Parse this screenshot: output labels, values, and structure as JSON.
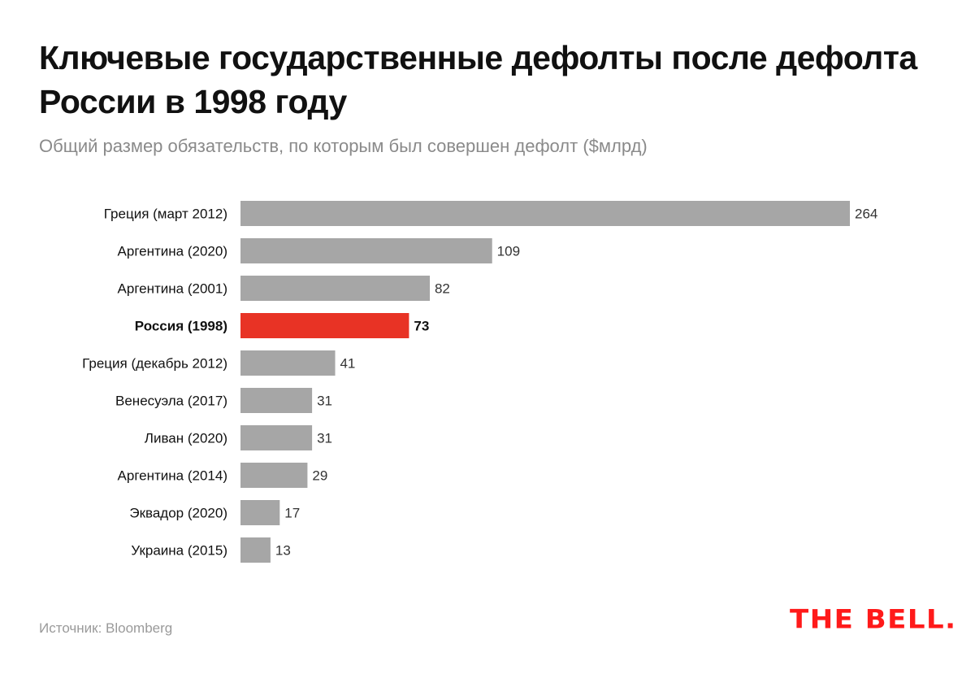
{
  "header": {
    "title": "Ключевые государственные дефолты после дефолта России в 1998 году",
    "subtitle": "Общий размер обязательств, по которым был совершен дефолт ($млрд)"
  },
  "footer": {
    "source": "Источник: Bloomberg",
    "logo": "THE BELL."
  },
  "colors": {
    "bar_default": "#a6a6a6",
    "bar_highlight": "#e83325",
    "label": "#111111",
    "value": "#333333",
    "logo": "#ff1a1a"
  },
  "chart_data": {
    "type": "bar",
    "orientation": "horizontal",
    "title": "Ключевые государственные дефолты после дефолта России в 1998 году",
    "subtitle": "Общий размер обязательств, по которым был совершен дефолт ($млрд)",
    "xlabel": "",
    "ylabel": "",
    "unit": "$млрд",
    "xlim": [
      0,
      264
    ],
    "grid": false,
    "legend": "none",
    "categories": [
      "Греция (март 2012)",
      "Аргентина (2020)",
      "Аргентина (2001)",
      "Россия (1998)",
      "Греция (декабрь 2012)",
      "Венесуэла (2017)",
      "Ливан (2020)",
      "Аргентина (2014)",
      "Эквадор (2020)",
      "Украина (2015)"
    ],
    "values": [
      264,
      109,
      82,
      73,
      41,
      31,
      31,
      29,
      17,
      13
    ],
    "highlight": "Россия (1998)",
    "source": "Источник: Bloomberg"
  }
}
